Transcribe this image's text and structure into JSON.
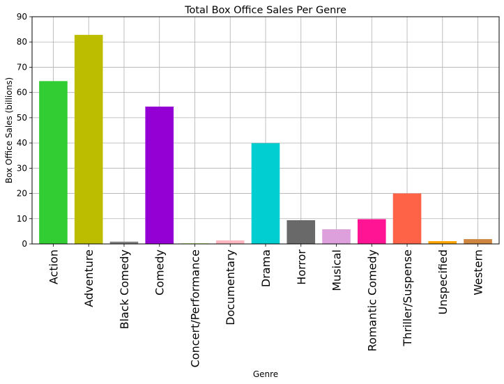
{
  "chart_data": {
    "type": "bar",
    "title": "Total Box Office Sales Per Genre",
    "xlabel": "Genre",
    "ylabel": "Box Office Sales (billions)",
    "ylim": [
      0,
      90
    ],
    "yticks": [
      0,
      10,
      20,
      30,
      40,
      50,
      60,
      70,
      80,
      90
    ],
    "grid": true,
    "categories": [
      "Action",
      "Adventure",
      "Black Comedy",
      "Comedy",
      "Concert/Performance",
      "Documentary",
      "Drama",
      "Horror",
      "Musical",
      "Romantic Comedy",
      "Thriller/Suspense",
      "Unspecified",
      "Western"
    ],
    "values": [
      64.5,
      82.8,
      0.9,
      54.4,
      0.2,
      1.4,
      39.9,
      9.4,
      5.8,
      9.8,
      20.0,
      1.1,
      1.9
    ],
    "colors": [
      "#32cd32",
      "#bdbd00",
      "#808080",
      "#9400d3",
      "#7cfc00",
      "#ffb6c1",
      "#00ced1",
      "#696969",
      "#dda0dd",
      "#ff1493",
      "#ff6347",
      "#ffa500",
      "#cd853f"
    ]
  }
}
